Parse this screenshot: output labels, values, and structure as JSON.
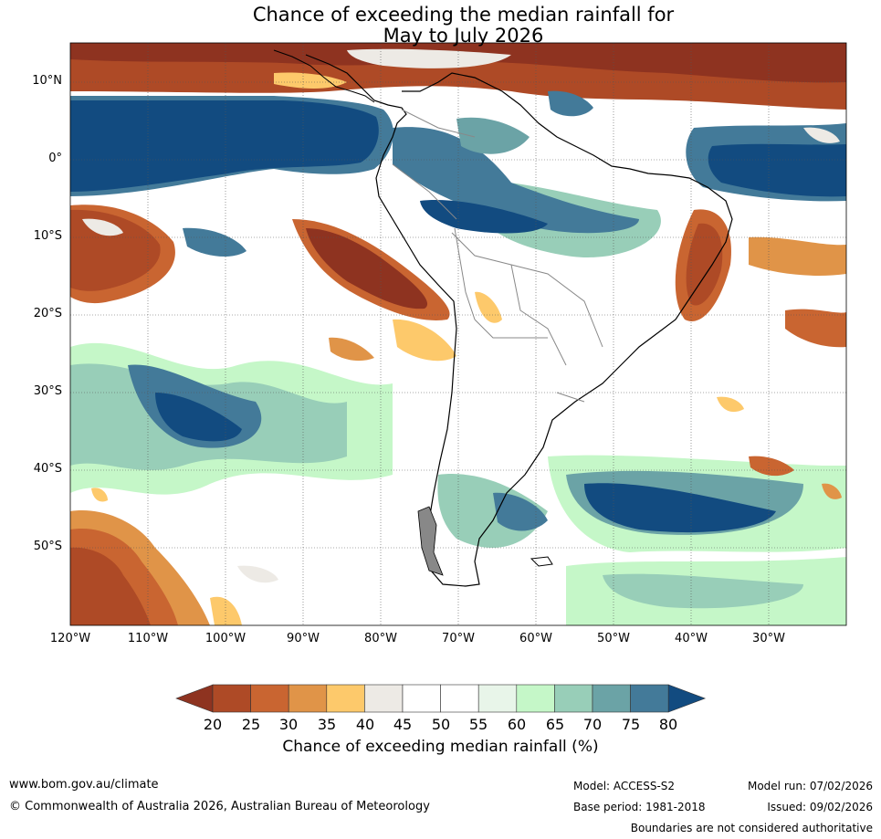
{
  "title": {
    "line1": "Chance of exceeding the median rainfall for",
    "line2": "May to July 2026"
  },
  "map": {
    "lat_labels": [
      "10°N",
      "0°",
      "10°S",
      "20°S",
      "30°S",
      "40°S",
      "50°S"
    ],
    "lon_labels": [
      "120°W",
      "110°W",
      "100°W",
      "90°W",
      "80°W",
      "70°W",
      "60°W",
      "50°W",
      "40°W",
      "30°W"
    ]
  },
  "colorbar": {
    "ticks": [
      "20",
      "25",
      "30",
      "35",
      "40",
      "45",
      "50",
      "55",
      "60",
      "65",
      "70",
      "75",
      "80"
    ],
    "label": "Chance of exceeding median rainfall (%)",
    "colors": [
      "#8e3320",
      "#ae4a26",
      "#c96531",
      "#e09448",
      "#fdc96b",
      "#edeae5",
      "#ffffff",
      "#ffffff",
      "#e8f5e9",
      "#c5f7c8",
      "#98ceb8",
      "#6ba3a6",
      "#437a99",
      "#124b80"
    ]
  },
  "footer": {
    "website": "www.bom.gov.au/climate",
    "copyright": "© Commonwealth of Australia 2026, Australian Bureau of Meteorology",
    "model": "Model: ACCESS-S2",
    "base_period": "Base period: 1981-2018",
    "model_run": "Model run: 07/02/2026",
    "issued": "Issued: 09/02/2026",
    "disclaimer": "Boundaries are not considered authoritative"
  }
}
